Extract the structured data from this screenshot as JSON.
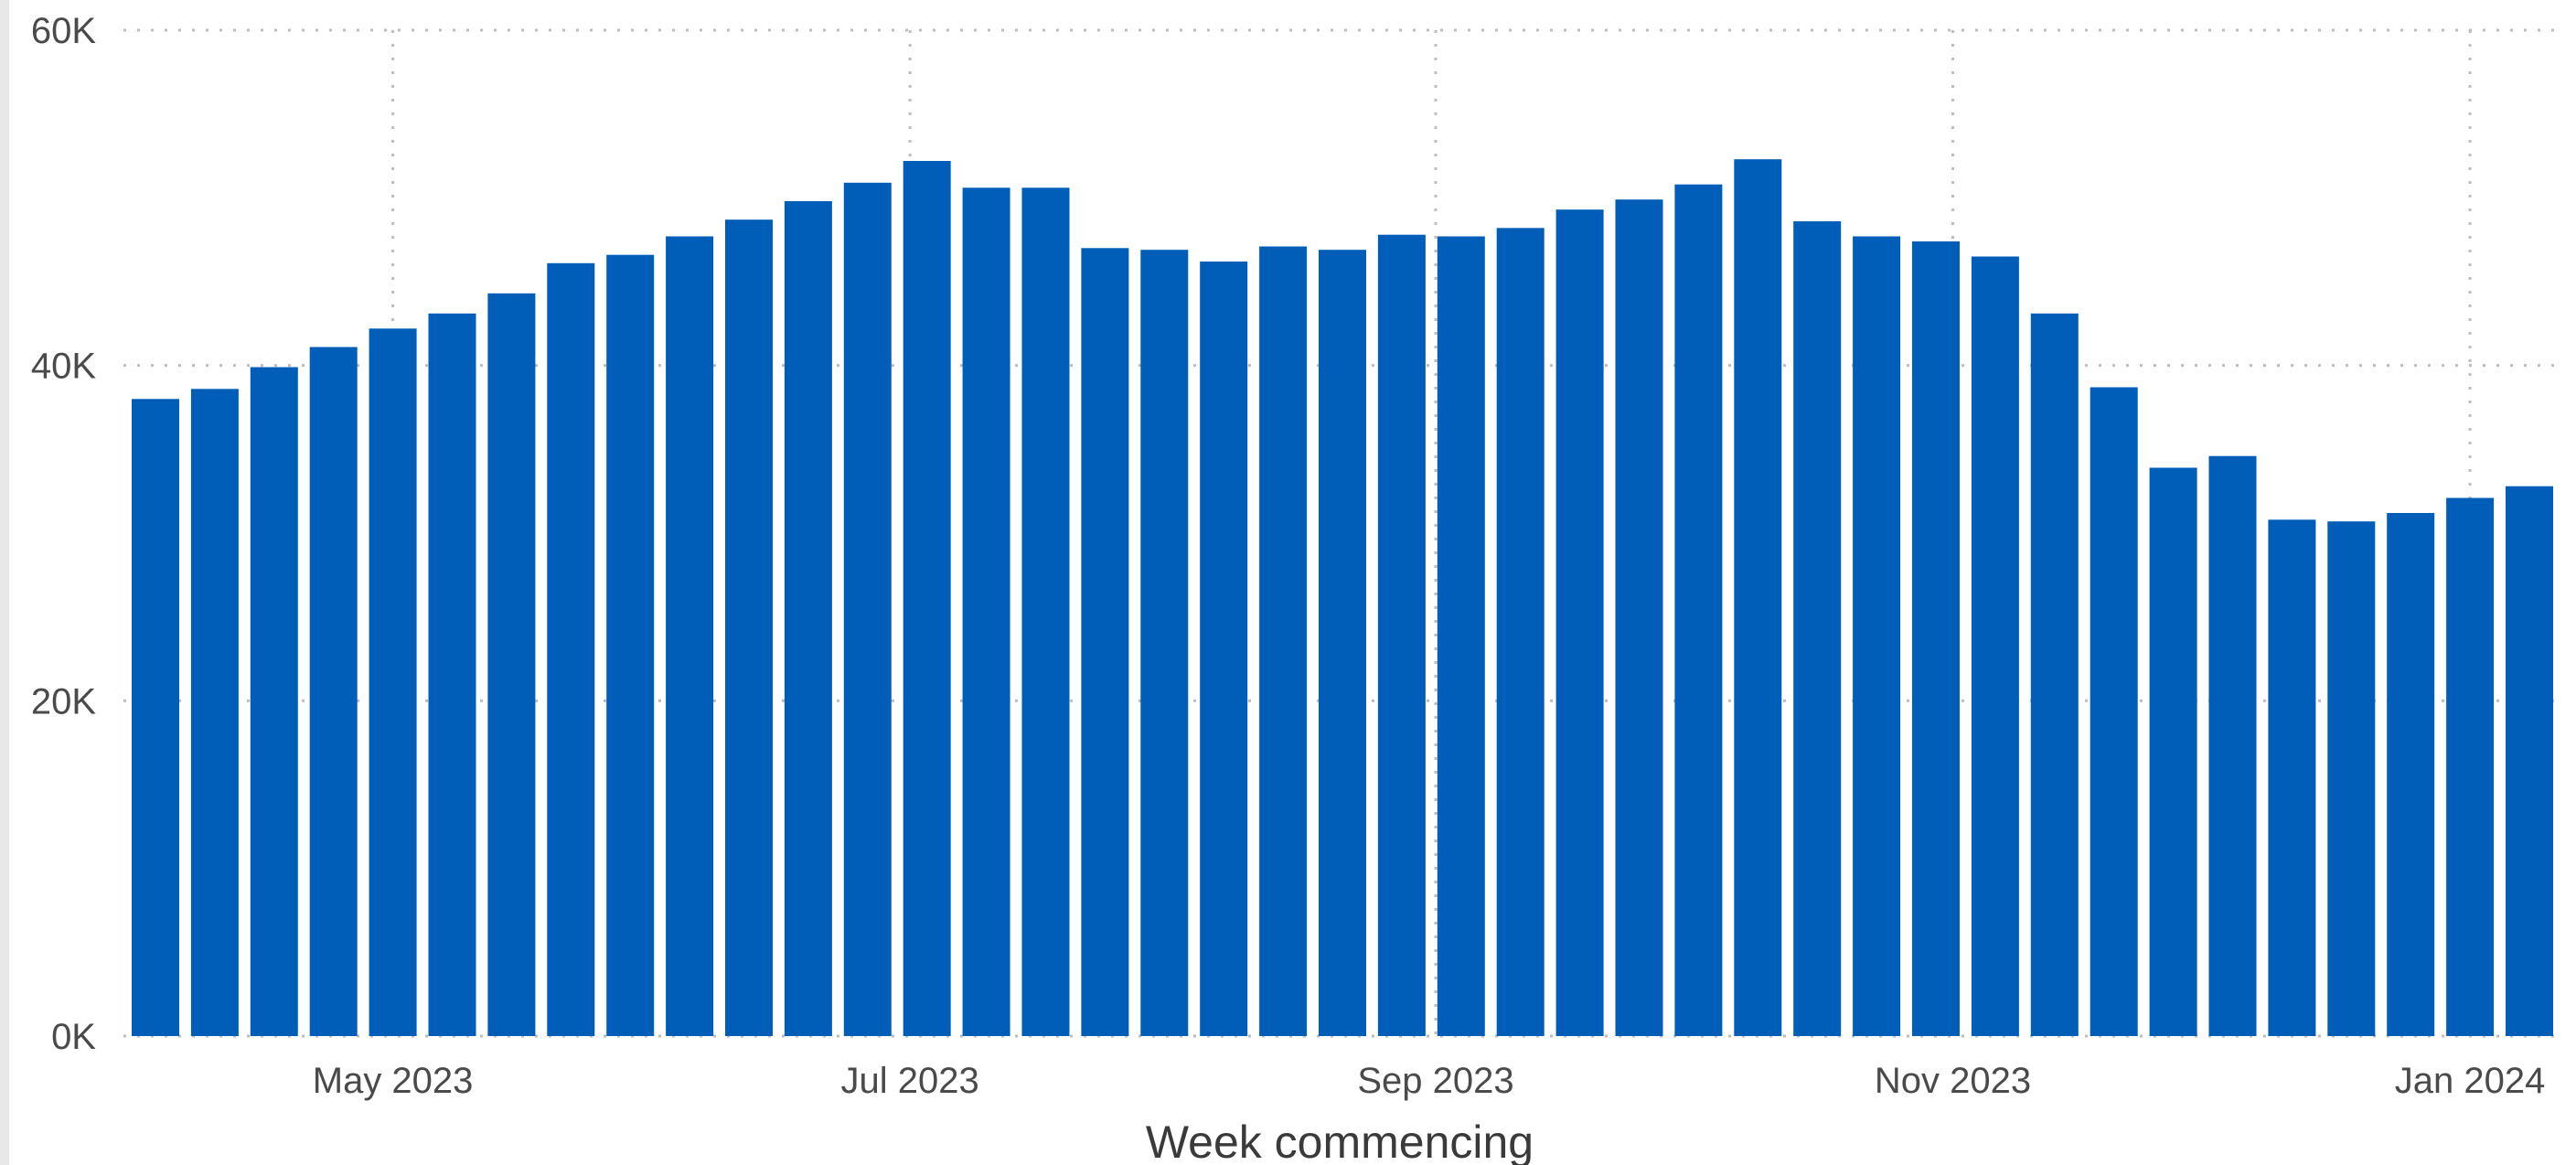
{
  "chart_data": {
    "type": "bar",
    "xlabel": "Week commencing",
    "ylabel": "",
    "ylim": [
      0,
      60000
    ],
    "yticks": [
      {
        "value": 0,
        "label": "0K"
      },
      {
        "value": 20000,
        "label": "20K"
      },
      {
        "value": 40000,
        "label": "40K"
      },
      {
        "value": 60000,
        "label": "60K"
      }
    ],
    "xticks": [
      {
        "date": "2023-05-01",
        "label": "May 2023"
      },
      {
        "date": "2023-07-01",
        "label": "Jul 2023"
      },
      {
        "date": "2023-09-01",
        "label": "Sep 2023"
      },
      {
        "date": "2023-11-01",
        "label": "Nov 2023"
      },
      {
        "date": "2024-01-01",
        "label": "Jan 2024"
      }
    ],
    "x": [
      "2023-04-03",
      "2023-04-10",
      "2023-04-17",
      "2023-04-24",
      "2023-05-01",
      "2023-05-08",
      "2023-05-15",
      "2023-05-22",
      "2023-05-29",
      "2023-06-05",
      "2023-06-12",
      "2023-06-19",
      "2023-06-26",
      "2023-07-03",
      "2023-07-10",
      "2023-07-17",
      "2023-07-24",
      "2023-07-31",
      "2023-08-07",
      "2023-08-14",
      "2023-08-21",
      "2023-08-28",
      "2023-09-04",
      "2023-09-11",
      "2023-09-18",
      "2023-09-25",
      "2023-10-02",
      "2023-10-09",
      "2023-10-16",
      "2023-10-23",
      "2023-10-30",
      "2023-11-06",
      "2023-11-13",
      "2023-11-20",
      "2023-11-27",
      "2023-12-04",
      "2023-12-11",
      "2023-12-18",
      "2023-12-25",
      "2024-01-01",
      "2024-01-08"
    ],
    "values": [
      38000,
      38600,
      39900,
      41100,
      42200,
      43100,
      44300,
      46100,
      46600,
      47700,
      48700,
      49800,
      50900,
      52200,
      50600,
      50600,
      47000,
      46900,
      46200,
      47100,
      46900,
      47800,
      47700,
      48200,
      49300,
      49900,
      50800,
      52300,
      48600,
      47700,
      47400,
      46500,
      43100,
      38700,
      33900,
      34600,
      30800,
      30700,
      31200,
      32100,
      32800
    ],
    "grid": {
      "x": true,
      "y": true
    },
    "bar_color": "#005eb8"
  }
}
